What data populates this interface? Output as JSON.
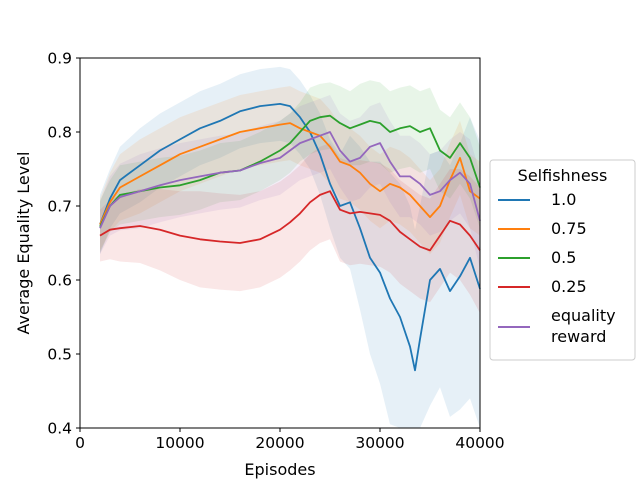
{
  "chart_data": {
    "type": "line",
    "xlabel": "Episodes",
    "ylabel": "Average Equality Level",
    "xlim": [
      0,
      40000
    ],
    "ylim": [
      0.4,
      0.9
    ],
    "xticks": [
      0,
      10000,
      20000,
      30000,
      40000
    ],
    "xtick_labels": [
      "0",
      "10000",
      "20000",
      "30000",
      "40000"
    ],
    "yticks": [
      0.4,
      0.5,
      0.6,
      0.7,
      0.8,
      0.9
    ],
    "ytick_labels": [
      "0.4",
      "0.5",
      "0.6",
      "0.7",
      "0.8",
      "0.9"
    ],
    "grid": false,
    "legend": {
      "title": "Selfishness",
      "placement": "outside-right"
    },
    "series": [
      {
        "name": "1.0",
        "color": "#1f77b4",
        "x": [
          2000,
          3000,
          4000,
          6000,
          8000,
          10000,
          12000,
          14000,
          16000,
          18000,
          20000,
          21000,
          22000,
          23000,
          24000,
          25000,
          26000,
          27000,
          28000,
          29000,
          30000,
          31000,
          32000,
          33000,
          33500,
          34000,
          35000,
          36000,
          37000,
          38000,
          39000,
          40000
        ],
        "y": [
          0.675,
          0.71,
          0.735,
          0.755,
          0.775,
          0.79,
          0.805,
          0.815,
          0.828,
          0.835,
          0.838,
          0.835,
          0.82,
          0.8,
          0.77,
          0.73,
          0.7,
          0.705,
          0.67,
          0.63,
          0.61,
          0.575,
          0.55,
          0.51,
          0.478,
          0.52,
          0.6,
          0.615,
          0.585,
          0.605,
          0.63,
          0.588
        ],
        "band": [
          0.04,
          0.04,
          0.045,
          0.05,
          0.05,
          0.05,
          0.05,
          0.05,
          0.05,
          0.05,
          0.05,
          0.05,
          0.05,
          0.05,
          0.055,
          0.06,
          0.07,
          0.09,
          0.11,
          0.13,
          0.15,
          0.17,
          0.18,
          0.19,
          0.19,
          0.18,
          0.17,
          0.16,
          0.17,
          0.18,
          0.19,
          0.2
        ]
      },
      {
        "name": "0.75",
        "color": "#ff7f0e",
        "x": [
          2000,
          3000,
          4000,
          6000,
          8000,
          10000,
          12000,
          14000,
          16000,
          18000,
          20000,
          21000,
          22000,
          23000,
          24000,
          25000,
          26000,
          27000,
          28000,
          29000,
          30000,
          31000,
          32000,
          33000,
          34000,
          35000,
          36000,
          37000,
          38000,
          39000,
          40000
        ],
        "y": [
          0.675,
          0.705,
          0.725,
          0.74,
          0.755,
          0.77,
          0.78,
          0.79,
          0.8,
          0.805,
          0.81,
          0.812,
          0.805,
          0.8,
          0.795,
          0.78,
          0.76,
          0.755,
          0.745,
          0.73,
          0.72,
          0.73,
          0.725,
          0.715,
          0.7,
          0.685,
          0.7,
          0.735,
          0.765,
          0.72,
          0.71
        ],
        "band": [
          0.035,
          0.04,
          0.045,
          0.05,
          0.05,
          0.05,
          0.05,
          0.05,
          0.05,
          0.05,
          0.05,
          0.05,
          0.05,
          0.05,
          0.05,
          0.05,
          0.05,
          0.05,
          0.05,
          0.05,
          0.05,
          0.05,
          0.05,
          0.05,
          0.05,
          0.05,
          0.05,
          0.05,
          0.05,
          0.05,
          0.05
        ]
      },
      {
        "name": "0.5",
        "color": "#2ca02c",
        "x": [
          2000,
          3000,
          4000,
          6000,
          8000,
          10000,
          12000,
          14000,
          16000,
          18000,
          20000,
          21000,
          22000,
          23000,
          24000,
          25000,
          26000,
          27000,
          28000,
          29000,
          30000,
          31000,
          32000,
          33000,
          34000,
          35000,
          36000,
          37000,
          38000,
          39000,
          40000
        ],
        "y": [
          0.672,
          0.7,
          0.715,
          0.72,
          0.725,
          0.728,
          0.735,
          0.745,
          0.748,
          0.76,
          0.775,
          0.785,
          0.8,
          0.815,
          0.82,
          0.822,
          0.812,
          0.805,
          0.81,
          0.815,
          0.812,
          0.8,
          0.805,
          0.808,
          0.8,
          0.805,
          0.775,
          0.765,
          0.785,
          0.765,
          0.725
        ],
        "band": [
          0.035,
          0.035,
          0.04,
          0.04,
          0.04,
          0.04,
          0.04,
          0.04,
          0.04,
          0.04,
          0.04,
          0.04,
          0.04,
          0.045,
          0.045,
          0.045,
          0.05,
          0.05,
          0.055,
          0.055,
          0.055,
          0.055,
          0.055,
          0.055,
          0.055,
          0.055,
          0.055,
          0.055,
          0.055,
          0.055,
          0.055
        ]
      },
      {
        "name": "0.25",
        "color": "#d62728",
        "x": [
          2000,
          3000,
          4000,
          6000,
          8000,
          10000,
          12000,
          14000,
          16000,
          18000,
          20000,
          21000,
          22000,
          23000,
          24000,
          25000,
          26000,
          27000,
          28000,
          29000,
          30000,
          31000,
          32000,
          33000,
          34000,
          35000,
          36000,
          37000,
          38000,
          39000,
          40000
        ],
        "y": [
          0.66,
          0.668,
          0.67,
          0.673,
          0.668,
          0.66,
          0.655,
          0.652,
          0.65,
          0.655,
          0.668,
          0.678,
          0.69,
          0.705,
          0.715,
          0.72,
          0.695,
          0.69,
          0.692,
          0.69,
          0.688,
          0.68,
          0.665,
          0.655,
          0.645,
          0.64,
          0.66,
          0.68,
          0.675,
          0.66,
          0.64
        ],
        "band": [
          0.035,
          0.04,
          0.045,
          0.05,
          0.055,
          0.06,
          0.065,
          0.065,
          0.065,
          0.065,
          0.065,
          0.065,
          0.065,
          0.065,
          0.065,
          0.065,
          0.07,
          0.07,
          0.07,
          0.07,
          0.07,
          0.07,
          0.07,
          0.07,
          0.07,
          0.07,
          0.07,
          0.07,
          0.075,
          0.08,
          0.085
        ]
      },
      {
        "name": "equality reward",
        "legend_lines": [
          "equality",
          "reward"
        ],
        "color": "#9467bd",
        "x": [
          2000,
          3000,
          4000,
          6000,
          8000,
          10000,
          12000,
          14000,
          16000,
          18000,
          20000,
          21000,
          22000,
          23000,
          24000,
          25000,
          26000,
          27000,
          28000,
          29000,
          30000,
          31000,
          32000,
          33000,
          34000,
          35000,
          36000,
          37000,
          38000,
          39000,
          40000
        ],
        "y": [
          0.67,
          0.7,
          0.712,
          0.72,
          0.728,
          0.735,
          0.74,
          0.745,
          0.748,
          0.758,
          0.765,
          0.775,
          0.785,
          0.79,
          0.795,
          0.8,
          0.775,
          0.76,
          0.765,
          0.78,
          0.785,
          0.76,
          0.74,
          0.74,
          0.73,
          0.715,
          0.72,
          0.735,
          0.745,
          0.73,
          0.68
        ],
        "band": [
          0.035,
          0.04,
          0.045,
          0.05,
          0.05,
          0.05,
          0.05,
          0.05,
          0.05,
          0.05,
          0.05,
          0.05,
          0.05,
          0.05,
          0.05,
          0.05,
          0.05,
          0.055,
          0.055,
          0.055,
          0.055,
          0.055,
          0.055,
          0.055,
          0.055,
          0.055,
          0.055,
          0.055,
          0.055,
          0.06,
          0.065
        ]
      }
    ]
  }
}
